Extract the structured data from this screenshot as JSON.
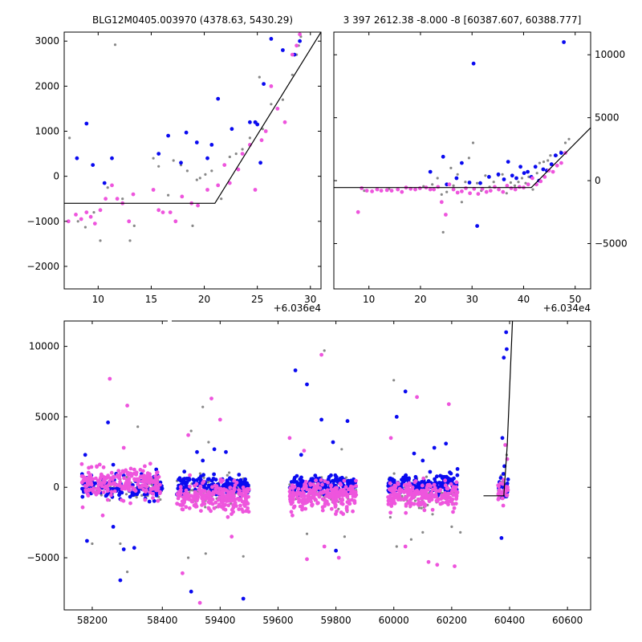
{
  "colors": {
    "blue": "#0a0af0",
    "pink": "#ee55dd",
    "grey": "#888888",
    "line": "#000000"
  },
  "chart_data": [
    {
      "id": "top-left",
      "type": "scatter",
      "title": "BLG12M0405.003970 (4378.63, 5430.29)",
      "offset_text": "+6.036e4",
      "xlim": [
        6.8,
        31.0
      ],
      "ylim": [
        -2500,
        3200
      ],
      "xticks": [
        10,
        15,
        20,
        25,
        30
      ],
      "yticks": [
        -2000,
        -1000,
        0,
        1000,
        2000,
        3000
      ],
      "yaxis_side": "left",
      "model_line": {
        "x": [
          6.8,
          21.0,
          31.0
        ],
        "y": [
          -600,
          -600,
          3200
        ]
      },
      "series": [
        {
          "color": "grey",
          "x": [
            7.3,
            8.1,
            8.8,
            9.6,
            10.2,
            10.9,
            11.6,
            12.3,
            13.0,
            13.4,
            15.2,
            15.7,
            16.6,
            17.1,
            17.8,
            18.4,
            18.9,
            19.3,
            19.6,
            20.1,
            20.7,
            21.6,
            22.4,
            23.0,
            23.6,
            24.3,
            24.9,
            25.2,
            25.5,
            26.3,
            27.4,
            28.3,
            28.7,
            28.9,
            29.1
          ],
          "y": [
            850,
            -1000,
            -1130,
            -800,
            -1430,
            -250,
            2920,
            -500,
            -1430,
            -1100,
            400,
            220,
            -420,
            350,
            250,
            120,
            -1100,
            -80,
            -40,
            40,
            120,
            -500,
            430,
            500,
            600,
            850,
            1200,
            2200,
            1050,
            1600,
            1700,
            2250,
            2700,
            2900,
            3100
          ]
        },
        {
          "color": "blue",
          "x": [
            8.0,
            8.9,
            9.5,
            10.6,
            11.3,
            15.7,
            16.6,
            17.8,
            18.3,
            19.3,
            20.3,
            20.7,
            21.3,
            22.6,
            24.3,
            24.8,
            25.0,
            25.3,
            25.6,
            26.3,
            27.4,
            28.5,
            29.0
          ],
          "y": [
            400,
            1170,
            250,
            -150,
            400,
            500,
            900,
            300,
            970,
            750,
            400,
            700,
            1720,
            1050,
            1200,
            1200,
            1150,
            300,
            2050,
            3050,
            2800,
            2700,
            3000
          ]
        },
        {
          "color": "pink",
          "x": [
            7.2,
            7.9,
            8.4,
            8.9,
            9.3,
            9.7,
            10.2,
            10.7,
            11.3,
            11.8,
            12.3,
            12.9,
            13.3,
            15.2,
            15.7,
            16.1,
            16.8,
            17.3,
            17.9,
            18.8,
            19.4,
            20.3,
            21.3,
            21.9,
            22.4,
            23.2,
            23.6,
            24.3,
            24.8,
            25.4,
            25.8,
            26.3,
            26.9,
            27.6,
            28.3,
            28.7,
            29.0
          ],
          "y": [
            -1000,
            -850,
            -950,
            -800,
            -900,
            -1050,
            -750,
            -500,
            -200,
            -500,
            -600,
            -1000,
            -400,
            -300,
            -750,
            -800,
            -800,
            -1000,
            -450,
            -600,
            -650,
            -300,
            -200,
            250,
            -150,
            150,
            500,
            700,
            -300,
            800,
            1000,
            2000,
            1500,
            1200,
            2700,
            2900,
            3150
          ]
        }
      ]
    },
    {
      "id": "top-right",
      "type": "scatter",
      "title": "3 397 2612.38 -8.000 -8 [60387.607, 60388.777]",
      "offset_text": "+6.034e4",
      "xlim": [
        3.2,
        53.0
      ],
      "ylim": [
        -8600,
        11800
      ],
      "xticks": [
        10,
        20,
        30,
        40,
        50
      ],
      "yticks": [
        -5000,
        0,
        5000,
        10000
      ],
      "yaxis_side": "right",
      "model_line": {
        "x": [
          3.2,
          41.5,
          53.0
        ],
        "y": [
          -550,
          -550,
          4200
        ]
      },
      "series": [
        {
          "color": "grey",
          "x": [
            9.1,
            11.5,
            13.9,
            17.2,
            20.6,
            22.3,
            23.3,
            24.1,
            24.4,
            25.1,
            25.9,
            26.4,
            27.2,
            28.0,
            28.7,
            29.4,
            30.2,
            31.0,
            31.8,
            32.6,
            33.4,
            34.2,
            35.1,
            35.9,
            36.7,
            37.5,
            38.3,
            39.0,
            39.7,
            40.4,
            41.0,
            41.8,
            42.6,
            43.1,
            43.9,
            44.7,
            45.2,
            46.4,
            47.2,
            48.1,
            48.8
          ],
          "y": [
            -800,
            -700,
            -650,
            -600,
            -450,
            -300,
            200,
            -1100,
            -4100,
            -900,
            1000,
            -400,
            500,
            -1700,
            -100,
            1800,
            3000,
            -200,
            -800,
            400,
            -500,
            -100,
            400,
            500,
            -1000,
            -150,
            -400,
            -100,
            200,
            -200,
            300,
            -700,
            600,
            1400,
            1500,
            1600,
            2000,
            2000,
            2300,
            3000,
            3300
          ]
        },
        {
          "color": "blue",
          "x": [
            21.9,
            24.4,
            25.1,
            27.0,
            28.0,
            29.5,
            30.3,
            31.0,
            31.6,
            33.3,
            35.1,
            36.2,
            37.0,
            37.8,
            38.6,
            39.4,
            40.1,
            40.8,
            41.5,
            42.3,
            43.0,
            43.8,
            44.5,
            45.4,
            46.2,
            47.3,
            47.8
          ],
          "y": [
            700,
            1900,
            -300,
            200,
            1400,
            -150,
            9300,
            -3600,
            -200,
            300,
            500,
            100,
            1500,
            400,
            200,
            1100,
            600,
            700,
            300,
            1100,
            0,
            900,
            800,
            1300,
            2000,
            2200,
            11000
          ]
        },
        {
          "color": "pink",
          "x": [
            7.9,
            8.6,
            9.6,
            10.6,
            11.6,
            12.4,
            13.5,
            14.4,
            15.6,
            16.4,
            17.2,
            18.1,
            19.0,
            19.9,
            21.1,
            21.9,
            22.6,
            23.4,
            24.1,
            24.9,
            25.6,
            26.4,
            27.2,
            28.0,
            28.8,
            29.6,
            30.4,
            31.2,
            32.0,
            32.8,
            33.6,
            34.4,
            35.2,
            36.0,
            36.8,
            37.6,
            38.4,
            39.2,
            40.0,
            40.9,
            41.7,
            42.5,
            43.3,
            44.1,
            44.9,
            45.7,
            46.5,
            47.3,
            48.1
          ],
          "y": [
            -2500,
            -600,
            -800,
            -850,
            -700,
            -800,
            -750,
            -800,
            -700,
            -900,
            -550,
            -650,
            -700,
            -600,
            -550,
            -700,
            -700,
            -500,
            -1700,
            -2700,
            -300,
            -700,
            -950,
            -850,
            -600,
            -1000,
            -650,
            -1050,
            -650,
            -900,
            -800,
            -500,
            -700,
            -900,
            -400,
            -600,
            -700,
            -500,
            -550,
            -300,
            200,
            -300,
            -50,
            300,
            800,
            700,
            1200,
            1400,
            2200
          ]
        }
      ]
    },
    {
      "id": "bottom",
      "type": "scatter",
      "title": "",
      "offset_text": "",
      "xlim": [
        58120,
        60680
      ],
      "ylim": [
        -8700,
        11800
      ],
      "xticks": [
        58200,
        58400,
        59400,
        59600,
        59800,
        60000,
        60200,
        60400,
        60600
      ],
      "yticks": [
        -5000,
        0,
        5000,
        10000
      ],
      "yaxis_side": "left",
      "broken_axis_x": 58420,
      "model_line": {
        "x": [
          60310,
          60380,
          60392,
          60410
        ],
        "y": [
          -600,
          -600,
          3000,
          11800
        ]
      },
      "clusters": [
        {
          "color": "grey",
          "x_range": [
            58170,
            58400
          ],
          "n": 90,
          "spread": 700,
          "center": 0,
          "outliers": [
            [
              58200,
              -4000
            ],
            [
              58280,
              -4000
            ],
            [
              58300,
              -6000
            ],
            [
              58330,
              4300
            ]
          ]
        },
        {
          "color": "blue",
          "x_range": [
            58170,
            58400
          ],
          "n": 120,
          "spread": 800,
          "center": 0,
          "outliers": [
            [
              58180,
              2300
            ],
            [
              58185,
              -3800
            ],
            [
              58245,
              4600
            ],
            [
              58260,
              -2800
            ],
            [
              58280,
              -6600
            ],
            [
              58290,
              -4400
            ],
            [
              58320,
              -4300
            ],
            [
              58260,
              1600
            ]
          ]
        },
        {
          "color": "pink",
          "x_range": [
            58170,
            58400
          ],
          "n": 220,
          "spread": 900,
          "center": 300,
          "outliers": [
            [
              58250,
              7700
            ],
            [
              58300,
              5800
            ],
            [
              58290,
              2800
            ],
            [
              58230,
              -2000
            ],
            [
              58350,
              1500
            ]
          ]
        },
        {
          "color": "grey",
          "x_range": [
            59250,
            59500
          ],
          "n": 80,
          "spread": 1100,
          "center": -300,
          "outliers": [
            [
              59290,
              -5000
            ],
            [
              59300,
              4000
            ],
            [
              59340,
              5700
            ],
            [
              59350,
              -4700
            ],
            [
              59480,
              -4900
            ],
            [
              59360,
              3200
            ]
          ]
        },
        {
          "color": "blue",
          "x_range": [
            59250,
            59500
          ],
          "n": 180,
          "spread": 600,
          "center": 100,
          "outliers": [
            [
              59300,
              -7400
            ],
            [
              59320,
              2500
            ],
            [
              59380,
              2700
            ],
            [
              59420,
              2500
            ],
            [
              59480,
              -7900
            ],
            [
              59340,
              1900
            ]
          ]
        },
        {
          "color": "pink",
          "x_range": [
            59250,
            59500
          ],
          "n": 260,
          "spread": 900,
          "center": -700,
          "outliers": [
            [
              59270,
              -6100
            ],
            [
              59330,
              -8200
            ],
            [
              59370,
              6300
            ],
            [
              59400,
              4800
            ],
            [
              59440,
              -3500
            ],
            [
              59290,
              3700
            ]
          ]
        },
        {
          "color": "grey",
          "x_range": [
            59640,
            59870
          ],
          "n": 80,
          "spread": 1000,
          "center": -300,
          "outliers": [
            [
              59700,
              -3300
            ],
            [
              59760,
              9700
            ],
            [
              59830,
              -3500
            ],
            [
              59820,
              2700
            ]
          ]
        },
        {
          "color": "blue",
          "x_range": [
            59640,
            59870
          ],
          "n": 170,
          "spread": 600,
          "center": 100,
          "outliers": [
            [
              59660,
              8300
            ],
            [
              59700,
              7300
            ],
            [
              59750,
              4800
            ],
            [
              59790,
              3200
            ],
            [
              59800,
              -4500
            ],
            [
              59840,
              4700
            ],
            [
              59680,
              2300
            ]
          ]
        },
        {
          "color": "pink",
          "x_range": [
            59640,
            59870
          ],
          "n": 240,
          "spread": 900,
          "center": -600,
          "outliers": [
            [
              59640,
              3500
            ],
            [
              59700,
              -5100
            ],
            [
              59750,
              9400
            ],
            [
              59760,
              -4200
            ],
            [
              59810,
              -5000
            ],
            [
              59690,
              2600
            ]
          ]
        },
        {
          "color": "grey",
          "x_range": [
            59980,
            60220
          ],
          "n": 80,
          "spread": 1000,
          "center": -300,
          "outliers": [
            [
              60000,
              7600
            ],
            [
              60010,
              -4200
            ],
            [
              60060,
              -3700
            ],
            [
              60100,
              -3200
            ],
            [
              60200,
              -2800
            ],
            [
              60230,
              -3200
            ]
          ]
        },
        {
          "color": "blue",
          "x_range": [
            59980,
            60220
          ],
          "n": 170,
          "spread": 600,
          "center": 200,
          "outliers": [
            [
              60010,
              5000
            ],
            [
              60040,
              6800
            ],
            [
              60070,
              2400
            ],
            [
              60100,
              1900
            ],
            [
              60140,
              2800
            ],
            [
              60180,
              3100
            ],
            [
              60220,
              1300
            ]
          ]
        },
        {
          "color": "pink",
          "x_range": [
            59980,
            60220
          ],
          "n": 240,
          "spread": 900,
          "center": -600,
          "outliers": [
            [
              59990,
              3500
            ],
            [
              60080,
              6400
            ],
            [
              60120,
              -5300
            ],
            [
              60150,
              -5500
            ],
            [
              60190,
              5900
            ],
            [
              60210,
              -5600
            ],
            [
              60040,
              -4200
            ]
          ]
        },
        {
          "color": "grey",
          "x_range": [
            60360,
            60395
          ],
          "n": 15,
          "spread": 900,
          "center": 0,
          "outliers": [
            [
              60385,
              1500
            ],
            [
              60390,
              2300
            ]
          ]
        },
        {
          "color": "blue",
          "x_range": [
            60360,
            60395
          ],
          "n": 25,
          "spread": 800,
          "center": 0,
          "outliers": [
            [
              60380,
              9200
            ],
            [
              60388,
              11000
            ],
            [
              60390,
              9800
            ],
            [
              60375,
              3500
            ],
            [
              60372,
              -3600
            ],
            [
              60382,
              1500
            ]
          ]
        },
        {
          "color": "pink",
          "x_range": [
            60360,
            60395
          ],
          "n": 25,
          "spread": 700,
          "center": -400,
          "outliers": [
            [
              60385,
              3000
            ],
            [
              60392,
              2000
            ],
            [
              60378,
              -1300
            ]
          ]
        }
      ]
    }
  ]
}
